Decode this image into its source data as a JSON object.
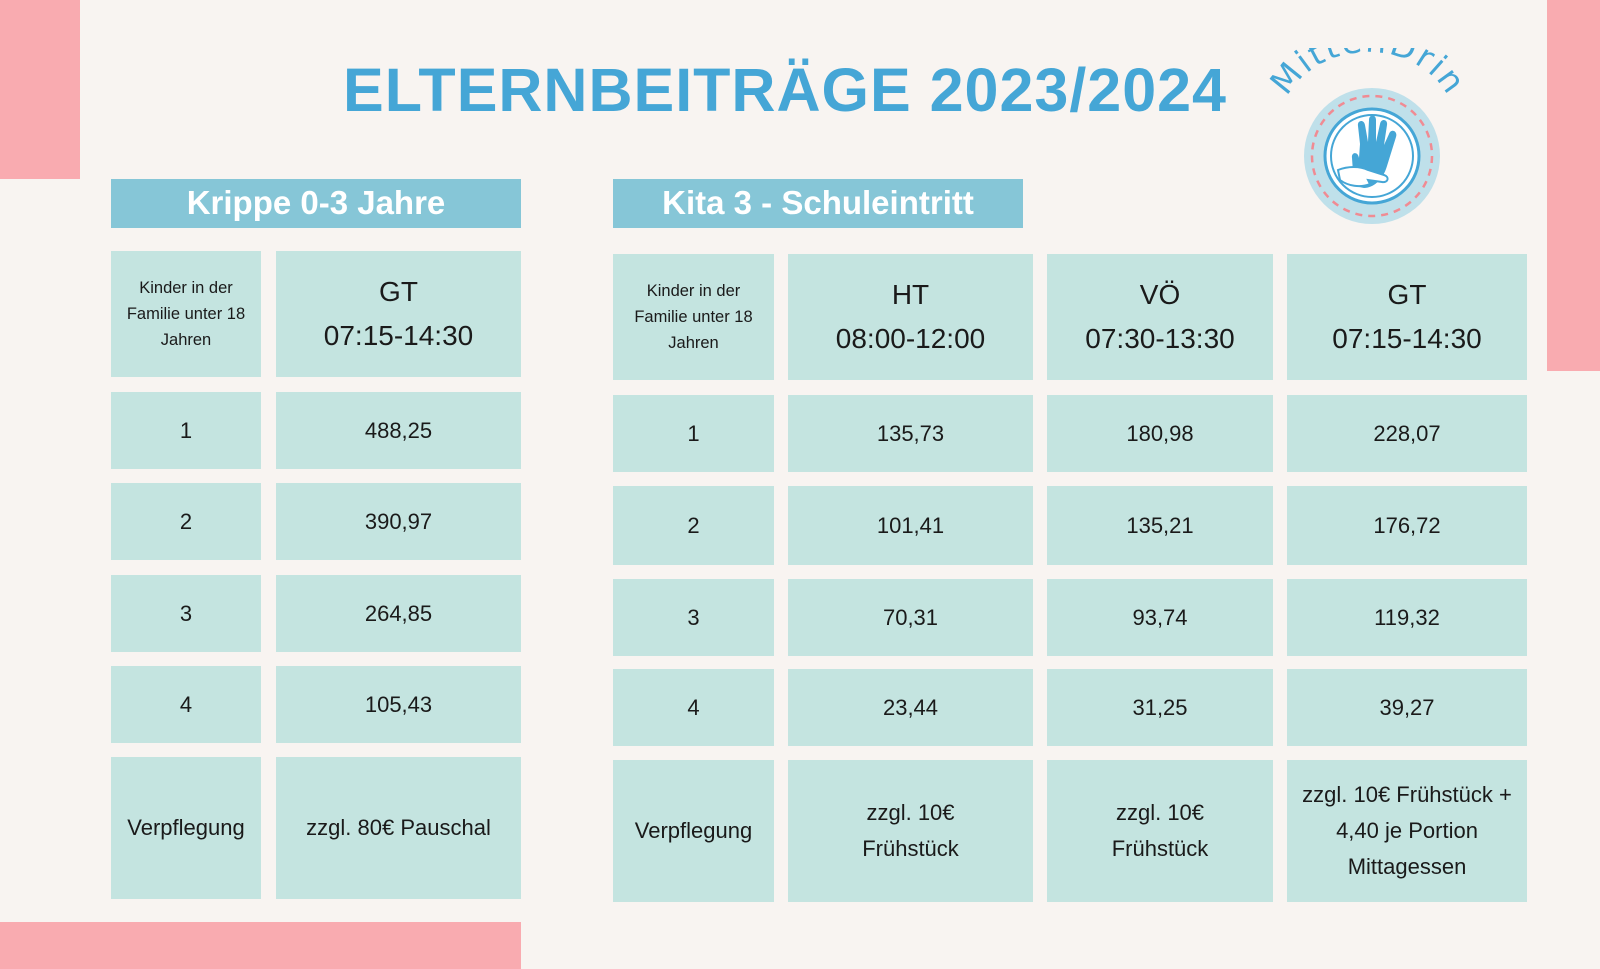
{
  "title": "ELTERNBEITRÄGE 2023/2024",
  "logo": {
    "text": "MittenDrin",
    "icon": "hands-icon"
  },
  "colors": {
    "accent_blue": "#45a6d6",
    "header_bar": "#86c6d7",
    "cell_bg": "#c4e4e0",
    "decor_pink": "#f9abb0",
    "background": "#f8f4f1"
  },
  "krippe": {
    "heading": "Krippe 0-3 Jahre",
    "row_header": "Kinder in der Familie unter 18 Jahren",
    "columns": [
      {
        "name": "GT",
        "time": "07:15-14:30"
      }
    ],
    "rows": [
      {
        "label": "1",
        "values": [
          "488,25"
        ]
      },
      {
        "label": "2",
        "values": [
          "390,97"
        ]
      },
      {
        "label": "3",
        "values": [
          "264,85"
        ]
      },
      {
        "label": "4",
        "values": [
          "105,43"
        ]
      },
      {
        "label": "Verpflegung",
        "values": [
          "zzgl. 80€ Pauschal"
        ]
      }
    ]
  },
  "kita": {
    "heading": "Kita 3 - Schuleintritt",
    "row_header": "Kinder in der Familie unter 18 Jahren",
    "columns": [
      {
        "name": "HT",
        "time": "08:00-12:00"
      },
      {
        "name": "VÖ",
        "time": "07:30-13:30"
      },
      {
        "name": "GT",
        "time": "07:15-14:30"
      }
    ],
    "rows": [
      {
        "label": "1",
        "values": [
          "135,73",
          "180,98",
          "228,07"
        ]
      },
      {
        "label": "2",
        "values": [
          "101,41",
          "135,21",
          "176,72"
        ]
      },
      {
        "label": "3",
        "values": [
          "70,31",
          "93,74",
          "119,32"
        ]
      },
      {
        "label": "4",
        "values": [
          "23,44",
          "31,25",
          "39,27"
        ]
      },
      {
        "label": "Verpflegung",
        "values": [
          "zzgl. 10€ Frühstück",
          "zzgl. 10€ Frühstück",
          "zzgl. 10€ Frühstück + 4,40 je Portion Mittagessen"
        ]
      }
    ]
  }
}
